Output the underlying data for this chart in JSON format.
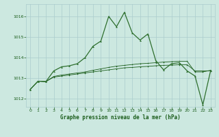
{
  "title": "Graphe pression niveau de la mer (hPa)",
  "bg_color": "#cce8e0",
  "grid_color": "#aacccc",
  "line_color1": "#1a5c1a",
  "line_color2": "#2d6e2d",
  "xlim": [
    -0.5,
    23.5
  ],
  "ylim": [
    1011.6,
    1016.6
  ],
  "yticks": [
    1012,
    1013,
    1014,
    1015,
    1016
  ],
  "xticks": [
    0,
    1,
    2,
    3,
    4,
    5,
    6,
    7,
    8,
    9,
    10,
    11,
    12,
    13,
    14,
    15,
    16,
    17,
    18,
    19,
    20,
    21,
    22,
    23
  ],
  "series1": [
    1012.45,
    1012.85,
    1012.83,
    1013.05,
    1013.1,
    1013.15,
    1013.2,
    1013.25,
    1013.3,
    1013.35,
    1013.4,
    1013.45,
    1013.5,
    1013.52,
    1013.55,
    1013.57,
    1013.6,
    1013.62,
    1013.63,
    1013.65,
    1013.65,
    1013.35,
    1013.35,
    1013.35
  ],
  "series2": [
    1012.45,
    1012.85,
    1012.83,
    1013.08,
    1013.15,
    1013.2,
    1013.25,
    1013.3,
    1013.38,
    1013.45,
    1013.52,
    1013.58,
    1013.62,
    1013.66,
    1013.7,
    1013.72,
    1013.75,
    1013.78,
    1013.8,
    1013.82,
    1013.82,
    1013.3,
    1013.3,
    1013.38
  ],
  "series3": [
    1012.45,
    1012.85,
    1012.83,
    1013.35,
    1013.55,
    1013.6,
    1013.7,
    1014.0,
    1014.55,
    1014.8,
    1016.0,
    1015.5,
    1016.2,
    1015.2,
    1014.85,
    1015.15,
    1013.85,
    1013.4,
    1013.7,
    1013.75,
    1013.35,
    1013.1,
    1011.7,
    1013.38
  ]
}
